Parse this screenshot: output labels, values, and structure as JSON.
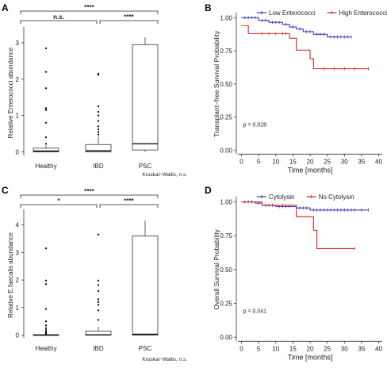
{
  "chart_data": [
    {
      "panel": "A",
      "type": "box",
      "ylabel": "Relative Enterococci abundance",
      "categories": [
        "Healthy",
        "IBD",
        "PSC"
      ],
      "yticks": [
        0,
        1,
        2,
        3
      ],
      "ylim": [
        -0.1,
        3.35
      ],
      "boxes": [
        {
          "category": "Healthy",
          "q1": 0,
          "median": 0.02,
          "q3": 0.1,
          "whisker_low": 0,
          "whisker_high": 0.17,
          "outliers": [
            2.85,
            2.2,
            1.75,
            1.2,
            1.15,
            0.8,
            0.4,
            0.22
          ]
        },
        {
          "category": "IBD",
          "q1": 0,
          "median": 0.03,
          "q3": 0.2,
          "whisker_low": 0,
          "whisker_high": 0.42,
          "outliers": [
            2.15,
            2.12,
            1.25,
            1.1,
            1.0,
            0.85,
            0.7,
            0.62,
            0.55,
            0.48
          ]
        },
        {
          "category": "PSC",
          "q1": 0.05,
          "median": 0.22,
          "q3": 2.95,
          "whisker_low": 0,
          "whisker_high": 3.15,
          "outliers": []
        }
      ],
      "brackets": [
        {
          "from": "Healthy",
          "to": "IBD",
          "label": "n.s.",
          "level": 1
        },
        {
          "from": "IBD",
          "to": "PSC",
          "label": "****",
          "level": 1
        },
        {
          "from": "Healthy",
          "to": "PSC",
          "label": "****",
          "level": 2
        }
      ],
      "footnote": "Kruskal−Wallis, n.s."
    },
    {
      "panel": "B",
      "type": "line",
      "subtype": "kaplan-meier",
      "xlabel": "Time [months]",
      "ylabel": "Transplant−free Survival Probability",
      "xticks": [
        0,
        5,
        10,
        15,
        20,
        25,
        30,
        35,
        40
      ],
      "yticks": [
        "0.00",
        "0.25",
        "0.50",
        "0.75",
        "1.00"
      ],
      "xlim": [
        -1.5,
        41.5
      ],
      "ylim": [
        -0.04,
        1.05
      ],
      "legend_position": "top",
      "annotation": "p = 0.028",
      "series": [
        {
          "name": "Low Enterococci",
          "color": "#3b3db5",
          "steps": [
            [
              0,
              1.0
            ],
            [
              5,
              0.98
            ],
            [
              8,
              0.965
            ],
            [
              12,
              0.95
            ],
            [
              14,
              0.93
            ],
            [
              16,
              0.915
            ],
            [
              18,
              0.895
            ],
            [
              21,
              0.875
            ],
            [
              25,
              0.855
            ],
            [
              32,
              0.855
            ]
          ],
          "censor": [
            1,
            2,
            3,
            4,
            6,
            7,
            9,
            10,
            11,
            13,
            15,
            17,
            19,
            20,
            22,
            23,
            24,
            26,
            27,
            28,
            29,
            30,
            31,
            32
          ]
        },
        {
          "name": "High Enterococci",
          "color": "#d9252b",
          "steps": [
            [
              0,
              0.94
            ],
            [
              2,
              0.88
            ],
            [
              14,
              0.845
            ],
            [
              16,
              0.755
            ],
            [
              20,
              0.69
            ],
            [
              21,
              0.615
            ],
            [
              37,
              0.615
            ]
          ],
          "censor": [
            6,
            8,
            10,
            12,
            13,
            24,
            27,
            30,
            33,
            37
          ]
        }
      ]
    },
    {
      "panel": "C",
      "type": "box",
      "ylabel": "Relative E.faecalis abundance",
      "categories": [
        "Healthy",
        "IBD",
        "PSC"
      ],
      "yticks": [
        0,
        1,
        2,
        3,
        4
      ],
      "ylim": [
        -0.1,
        4.45
      ],
      "boxes": [
        {
          "category": "Healthy",
          "q1": 0,
          "median": 0.005,
          "q3": 0.01,
          "whisker_low": 0,
          "whisker_high": 0.02,
          "outliers": [
            3.15,
            1.98,
            1.85,
            0.95,
            0.5,
            0.35,
            0.25,
            0.18,
            0.12,
            0.08,
            0.05
          ]
        },
        {
          "category": "IBD",
          "q1": 0,
          "median": 0.01,
          "q3": 0.15,
          "whisker_low": 0,
          "whisker_high": 0.3,
          "outliers": [
            3.65,
            1.98,
            1.82,
            1.6,
            1.3,
            1.2,
            1.1,
            0.9,
            0.55
          ]
        },
        {
          "category": "PSC",
          "q1": 0,
          "median": 0.03,
          "q3": 3.6,
          "whisker_low": 0,
          "whisker_high": 4.15,
          "outliers": []
        }
      ],
      "brackets": [
        {
          "from": "Healthy",
          "to": "IBD",
          "label": "*",
          "level": 1
        },
        {
          "from": "IBD",
          "to": "PSC",
          "label": "****",
          "level": 1
        },
        {
          "from": "Healthy",
          "to": "PSC",
          "label": "****",
          "level": 2
        }
      ],
      "footnote": "Kruskal−Wallis, n.s."
    },
    {
      "panel": "D",
      "type": "line",
      "subtype": "kaplan-meier",
      "xlabel": "Time [months]",
      "ylabel": "Overall Survival Probability",
      "xticks": [
        0,
        5,
        10,
        15,
        20,
        25,
        30,
        35,
        40
      ],
      "yticks": [
        "0.00",
        "0.25",
        "0.50",
        "0.75",
        "1.00"
      ],
      "xlim": [
        -1.5,
        41.5
      ],
      "ylim": [
        -0.04,
        1.05
      ],
      "legend_position": "top",
      "annotation": "p = 0.041",
      "series": [
        {
          "name": "Cytolysin",
          "color": "#3b3db5",
          "steps": [
            [
              0,
              1.0
            ],
            [
              4,
              0.99
            ],
            [
              6,
              0.975
            ],
            [
              10,
              0.965
            ],
            [
              16,
              0.955
            ],
            [
              20,
              0.94
            ],
            [
              37,
              0.94
            ]
          ],
          "censor": [
            1,
            2,
            3,
            5,
            7,
            8,
            9,
            11,
            12,
            13,
            14,
            17,
            18,
            19,
            21,
            22,
            23,
            24,
            25,
            26,
            27,
            28,
            29,
            30,
            31,
            32,
            33,
            35,
            37
          ]
        },
        {
          "name": "No Cytolysin",
          "color": "#d9252b",
          "steps": [
            [
              0,
              1.0
            ],
            [
              6,
              0.975
            ],
            [
              16,
              0.89
            ],
            [
              21,
              0.79
            ],
            [
              22,
              0.655
            ],
            [
              33,
              0.655
            ]
          ],
          "censor": [
            3,
            9,
            12,
            33
          ]
        }
      ]
    }
  ]
}
